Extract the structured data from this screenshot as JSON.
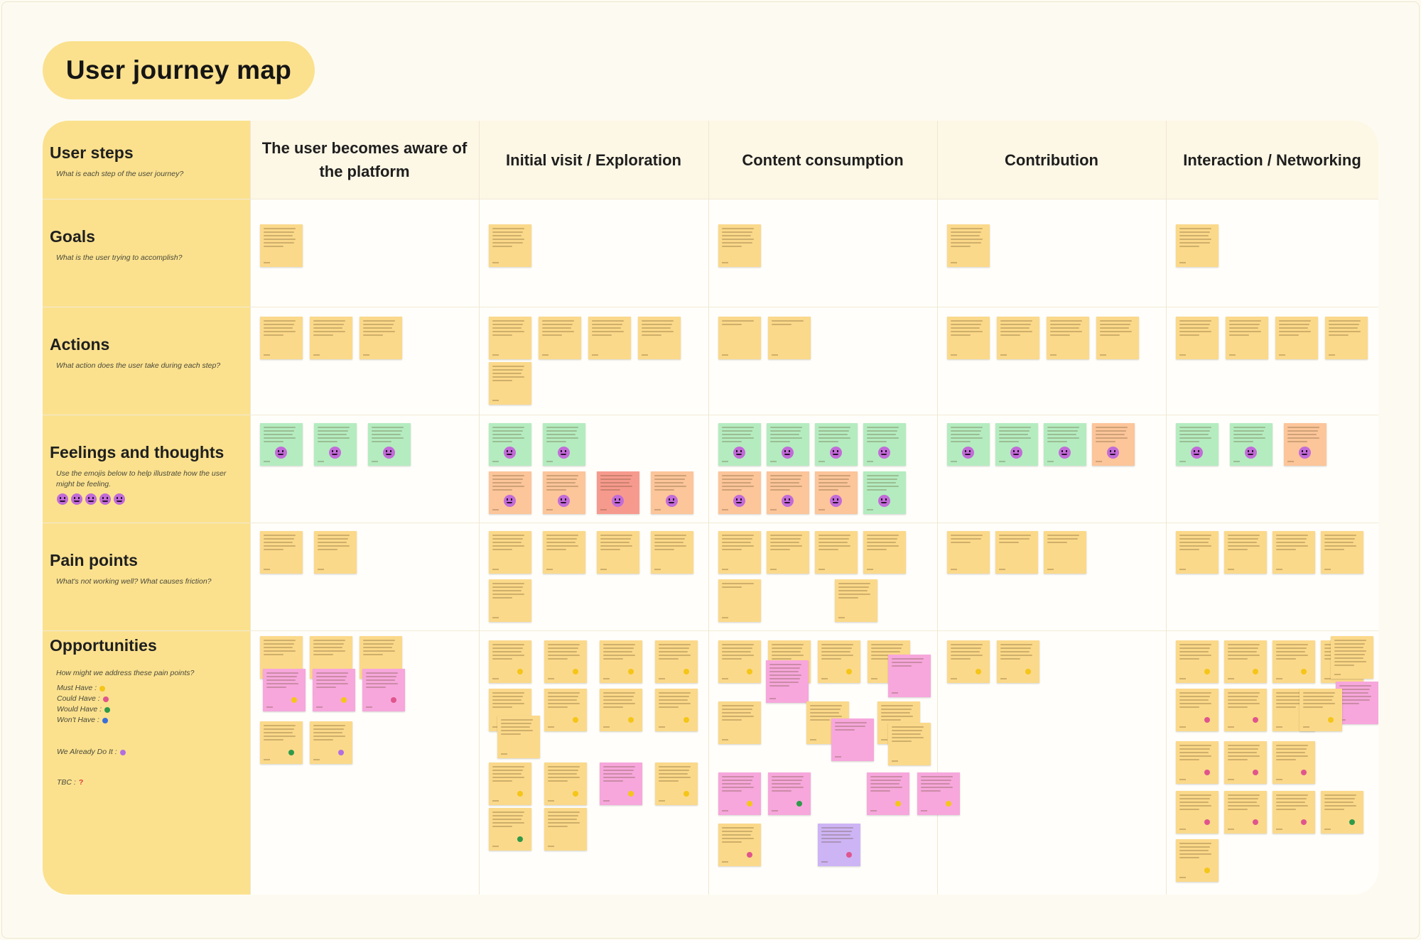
{
  "title": "User journey map",
  "rows": [
    {
      "id": "steps",
      "label": "User steps",
      "sub": "What is each step of the user journey?"
    },
    {
      "id": "goals",
      "label": "Goals",
      "sub": "What is the user trying to accomplish?"
    },
    {
      "id": "actions",
      "label": "Actions",
      "sub": "What action does the user take during each step?"
    },
    {
      "id": "feelings",
      "label": "Feelings and thoughts",
      "sub": "Use the emojis below to help illustrate how the user might be feeling."
    },
    {
      "id": "pain",
      "label": "Pain points",
      "sub": "What's not working well? What causes friction?"
    },
    {
      "id": "opps",
      "label": "Opportunities",
      "sub": "How might we address these pain points?"
    }
  ],
  "steps": [
    "The user becomes aware of the platform",
    "Initial visit / Exploration",
    "Content consumption",
    "Contribution",
    "Interaction / Networking"
  ],
  "legend": {
    "must": "Must Have :",
    "could": "Could Have :",
    "would": "Would Have :",
    "wont": "Won't Have :",
    "already": "We Already Do It :",
    "tbc": "TBC :",
    "tbc_mark": "?"
  },
  "colors": {
    "yellow": "#fbd98a",
    "green": "#b4ecc0",
    "orange": "#fcc59a",
    "red": "#f79a8e",
    "pink": "#f7a7dc",
    "violet": "#cdb4f5",
    "must": "#f5c518",
    "could": "#e0558d",
    "would": "#2e9a4a",
    "wont": "#3a6fd8",
    "already": "#b36ee0",
    "tbc": "#e03a3a"
  }
}
